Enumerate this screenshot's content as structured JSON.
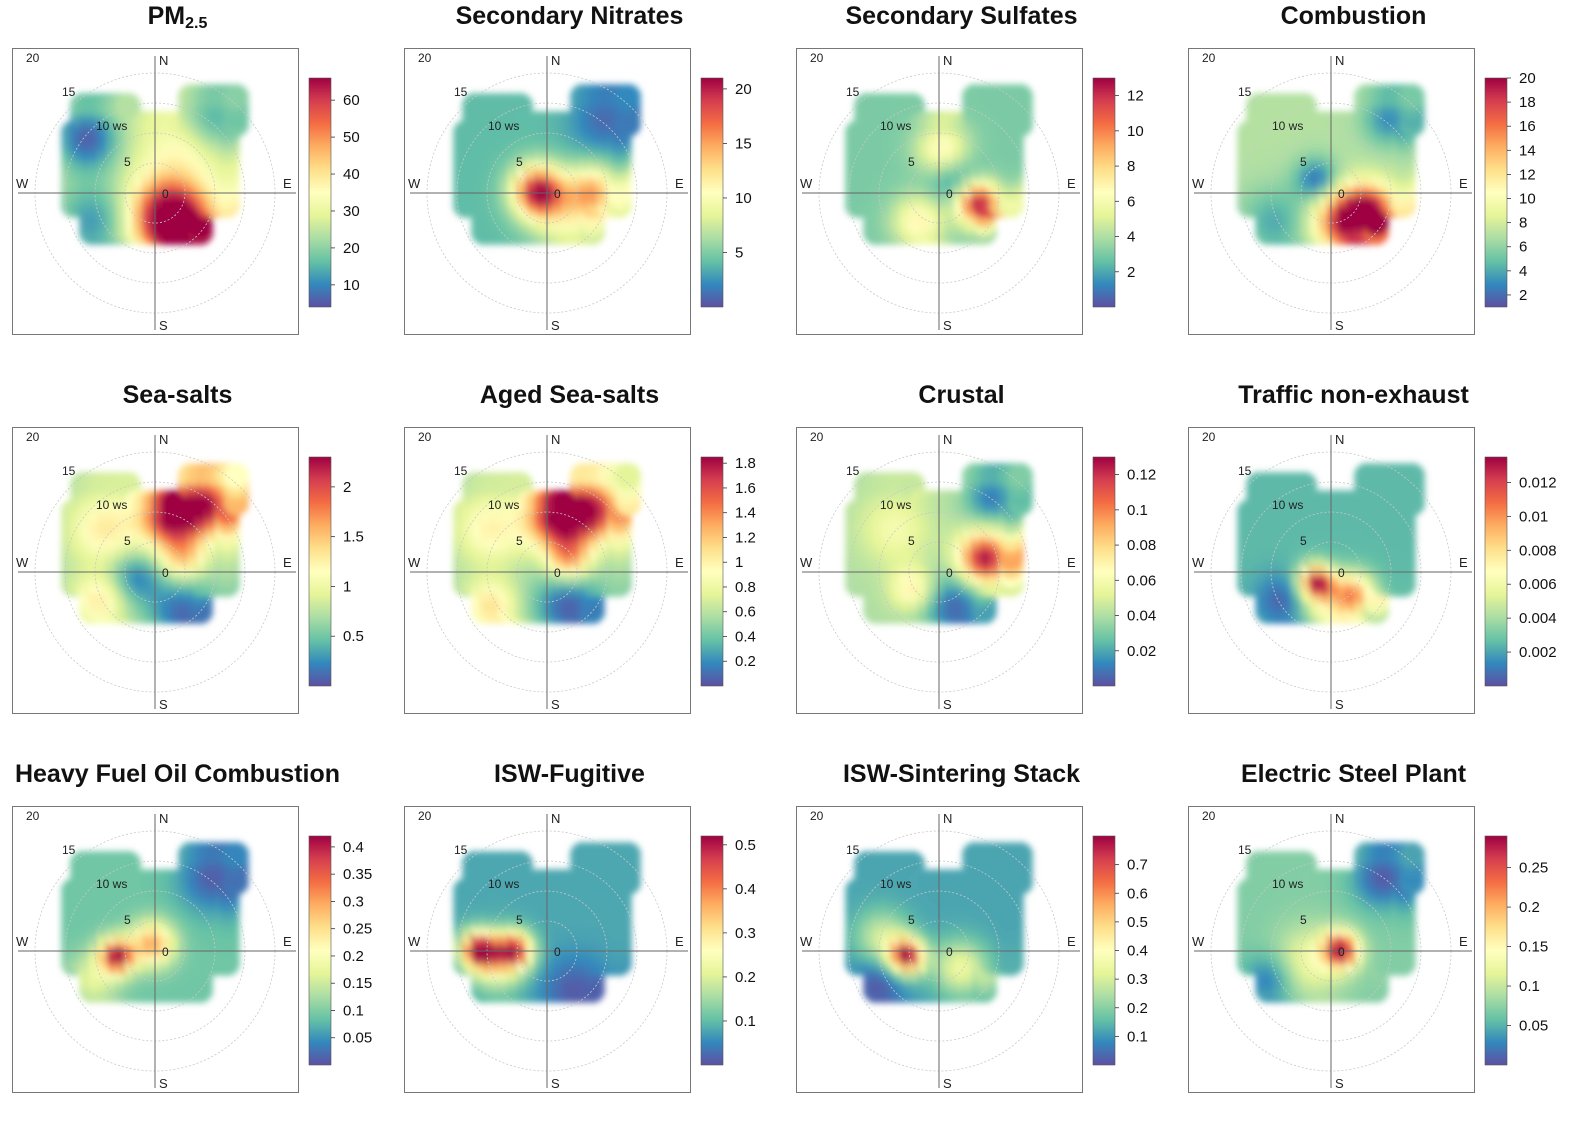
{
  "colors": {
    "palette": [
      "#5e4fa2",
      "#3288bd",
      "#66c2a5",
      "#abdda4",
      "#e6f598",
      "#ffffbf",
      "#fee08b",
      "#fdae61",
      "#f46d43",
      "#d53e4f",
      "#9e0142"
    ],
    "frame": "#777777",
    "axis": "#666666",
    "ring": "#c8c8c8"
  },
  "polar_common": {
    "ring_labels": [
      "5",
      "10 ws",
      "15",
      "20"
    ],
    "center_label": "0",
    "directions": {
      "n": "N",
      "e": "E",
      "s": "S",
      "w": "W"
    }
  },
  "chart_data": [
    {
      "type": "heatmap",
      "subtype": "polar-plot",
      "title": "PM",
      "title_sub": "2.5",
      "colorbar": {
        "range": [
          4,
          66
        ],
        "ticks": [
          "10",
          "20",
          "30",
          "40",
          "50",
          "60"
        ]
      },
      "base_value": 28,
      "hotspots": [
        {
          "x": 5,
          "y": -5,
          "value": 66,
          "spread": 4.5
        },
        {
          "x": 3,
          "y": -2,
          "value": 50,
          "spread": 4
        },
        {
          "x": -10,
          "y": 10,
          "value": 6,
          "spread": 4
        },
        {
          "x": -9,
          "y": -4,
          "value": 12,
          "spread": 5
        },
        {
          "x": 11,
          "y": 13,
          "value": 14,
          "spread": 4
        },
        {
          "x": 6,
          "y": 8,
          "value": 36,
          "spread": 4
        }
      ]
    },
    {
      "type": "heatmap",
      "subtype": "polar-plot",
      "title": "Secondary Nitrates",
      "title_sub": "",
      "colorbar": {
        "range": [
          0,
          21
        ],
        "ticks": [
          "5",
          "10",
          "15",
          "20"
        ]
      },
      "base_value": 4,
      "hotspots": [
        {
          "x": 0,
          "y": 1,
          "value": 21,
          "spread": 3
        },
        {
          "x": 9,
          "y": 1,
          "value": 14,
          "spread": 3
        },
        {
          "x": 11,
          "y": 13,
          "value": 1,
          "spread": 4
        },
        {
          "x": 5,
          "y": -4,
          "value": 9,
          "spread": 4
        }
      ]
    },
    {
      "type": "heatmap",
      "subtype": "polar-plot",
      "title": "Secondary Sulfates",
      "title_sub": "",
      "colorbar": {
        "range": [
          0,
          13
        ],
        "ticks": [
          "2",
          "4",
          "6",
          "8",
          "10",
          "12"
        ]
      },
      "base_value": 3,
      "hotspots": [
        {
          "x": 8,
          "y": -1,
          "value": 13,
          "spread": 2.5
        },
        {
          "x": 2,
          "y": 8,
          "value": 7,
          "spread": 3
        },
        {
          "x": -2,
          "y": -4,
          "value": 7,
          "spread": 3
        },
        {
          "x": 4,
          "y": 3,
          "value": 1,
          "spread": 3
        }
      ]
    },
    {
      "type": "heatmap",
      "subtype": "polar-plot",
      "title": "Combustion",
      "title_sub": "",
      "colorbar": {
        "range": [
          1,
          20
        ],
        "ticks": [
          "2",
          "4",
          "6",
          "8",
          "10",
          "12",
          "14",
          "16",
          "18",
          "20"
        ]
      },
      "base_value": 7,
      "hotspots": [
        {
          "x": 4,
          "y": -4,
          "value": 20,
          "spread": 3.5
        },
        {
          "x": 8,
          "y": -2,
          "value": 17,
          "spread": 3
        },
        {
          "x": -1,
          "y": 3,
          "value": 2,
          "spread": 2.5
        },
        {
          "x": -8,
          "y": -4,
          "value": 4,
          "spread": 4
        },
        {
          "x": 11,
          "y": 13,
          "value": 3,
          "spread": 3
        }
      ]
    },
    {
      "type": "heatmap",
      "subtype": "polar-plot",
      "title": "Sea-salts",
      "title_sub": "",
      "colorbar": {
        "range": [
          0,
          2.3
        ],
        "ticks": [
          "0.5",
          "1",
          "1.5",
          "2"
        ]
      },
      "base_value": 0.7,
      "hotspots": [
        {
          "x": 4,
          "y": 10,
          "value": 2.3,
          "spread": 3.5
        },
        {
          "x": 10,
          "y": 12,
          "value": 2.1,
          "spread": 3.5
        },
        {
          "x": -7,
          "y": 8,
          "value": 1.3,
          "spread": 4
        },
        {
          "x": 6,
          "y": 3,
          "value": 1.4,
          "spread": 2.5
        },
        {
          "x": -2,
          "y": 0,
          "value": 0.2,
          "spread": 3
        },
        {
          "x": 6,
          "y": -6,
          "value": 0.1,
          "spread": 4
        },
        {
          "x": -8,
          "y": -4,
          "value": 1.3,
          "spread": 3
        }
      ]
    },
    {
      "type": "heatmap",
      "subtype": "polar-plot",
      "title": "Aged Sea-salts",
      "title_sub": "",
      "colorbar": {
        "range": [
          0,
          1.85
        ],
        "ticks": [
          "0.2",
          "0.4",
          "0.6",
          "0.8",
          "1",
          "1.2",
          "1.4",
          "1.6",
          "1.8"
        ]
      },
      "base_value": 0.55,
      "hotspots": [
        {
          "x": 3,
          "y": 10,
          "value": 1.85,
          "spread": 3.5
        },
        {
          "x": 9,
          "y": 11,
          "value": 1.7,
          "spread": 3.5
        },
        {
          "x": 5,
          "y": 3,
          "value": 1.3,
          "spread": 2.5
        },
        {
          "x": -8,
          "y": 8,
          "value": 1.0,
          "spread": 4
        },
        {
          "x": 5,
          "y": -5,
          "value": 0.05,
          "spread": 4
        },
        {
          "x": -8,
          "y": -5,
          "value": 1.1,
          "spread": 3
        }
      ]
    },
    {
      "type": "heatmap",
      "subtype": "polar-plot",
      "title": "Crustal",
      "title_sub": "",
      "colorbar": {
        "range": [
          0,
          0.13
        ],
        "ticks": [
          "0.02",
          "0.04",
          "0.06",
          "0.08",
          "0.1",
          "0.12"
        ]
      },
      "base_value": 0.04,
      "hotspots": [
        {
          "x": 9,
          "y": 3,
          "value": 0.13,
          "spread": 3
        },
        {
          "x": -3,
          "y": -2,
          "value": 0.075,
          "spread": 2.5
        },
        {
          "x": 4,
          "y": -5,
          "value": 0.005,
          "spread": 4
        },
        {
          "x": 10,
          "y": 13,
          "value": 0.01,
          "spread": 3
        },
        {
          "x": -6,
          "y": 8,
          "value": 0.06,
          "spread": 4
        }
      ]
    },
    {
      "type": "heatmap",
      "subtype": "polar-plot",
      "title": "Traffic non-exhaust",
      "title_sub": "",
      "colorbar": {
        "range": [
          0,
          0.0135
        ],
        "ticks": [
          "0.002",
          "0.004",
          "0.006",
          "0.008",
          "0.01",
          "0.012"
        ]
      },
      "base_value": 0.0025,
      "hotspots": [
        {
          "x": -1,
          "y": -1,
          "value": 0.0135,
          "spread": 2
        },
        {
          "x": 5,
          "y": -3,
          "value": 0.01,
          "spread": 2.5
        },
        {
          "x": -7,
          "y": -4,
          "value": 0.0005,
          "spread": 3
        },
        {
          "x": 1,
          "y": -7,
          "value": 0.006,
          "spread": 3
        }
      ]
    },
    {
      "type": "heatmap",
      "subtype": "polar-plot",
      "title": "Heavy Fuel Oil Combustion",
      "title_sub": "",
      "colorbar": {
        "range": [
          0,
          0.42
        ],
        "ticks": [
          "0.05",
          "0.1",
          "0.15",
          "0.2",
          "0.25",
          "0.3",
          "0.35",
          "0.4"
        ]
      },
      "base_value": 0.09,
      "hotspots": [
        {
          "x": -5,
          "y": 0,
          "value": 0.42,
          "spread": 2
        },
        {
          "x": 1,
          "y": 2,
          "value": 0.3,
          "spread": 2.5
        },
        {
          "x": 11,
          "y": 13,
          "value": 0.01,
          "spread": 4
        },
        {
          "x": -9,
          "y": -4,
          "value": 0.17,
          "spread": 3
        }
      ]
    },
    {
      "type": "heatmap",
      "subtype": "polar-plot",
      "title": "ISW-Fugitive",
      "title_sub": "",
      "colorbar": {
        "range": [
          0,
          0.52
        ],
        "ticks": [
          "0.1",
          "0.2",
          "0.3",
          "0.4",
          "0.5"
        ]
      },
      "base_value": 0.08,
      "hotspots": [
        {
          "x": -10,
          "y": 1,
          "value": 0.52,
          "spread": 2
        },
        {
          "x": -4,
          "y": 1,
          "value": 0.45,
          "spread": 2
        },
        {
          "x": -7,
          "y": -1,
          "value": 0.28,
          "spread": 3
        },
        {
          "x": 6,
          "y": -6,
          "value": 0.01,
          "spread": 4
        }
      ]
    },
    {
      "type": "heatmap",
      "subtype": "polar-plot",
      "title": "ISW-Sintering Stack",
      "title_sub": "",
      "colorbar": {
        "range": [
          0,
          0.8
        ],
        "ticks": [
          "0.1",
          "0.2",
          "0.3",
          "0.4",
          "0.5",
          "0.6",
          "0.7"
        ]
      },
      "base_value": 0.12,
      "hotspots": [
        {
          "x": -4,
          "y": 0,
          "value": 0.8,
          "spread": 2
        },
        {
          "x": 5,
          "y": -2,
          "value": 0.35,
          "spread": 3
        },
        {
          "x": -8,
          "y": 3,
          "value": 0.3,
          "spread": 3
        },
        {
          "x": -9,
          "y": -5,
          "value": 0.01,
          "spread": 3
        }
      ]
    },
    {
      "type": "heatmap",
      "subtype": "polar-plot",
      "title": "Electric Steel Plant",
      "title_sub": "",
      "colorbar": {
        "range": [
          0,
          0.29
        ],
        "ticks": [
          "0.05",
          "0.1",
          "0.15",
          "0.2",
          "0.25"
        ]
      },
      "base_value": 0.07,
      "hotspots": [
        {
          "x": 3,
          "y": 1,
          "value": 0.29,
          "spread": 2
        },
        {
          "x": -2,
          "y": -1,
          "value": 0.13,
          "spread": 4
        },
        {
          "x": 10,
          "y": 13,
          "value": 0.005,
          "spread": 3.5
        },
        {
          "x": -9,
          "y": -4,
          "value": 0.02,
          "spread": 3
        }
      ]
    }
  ]
}
